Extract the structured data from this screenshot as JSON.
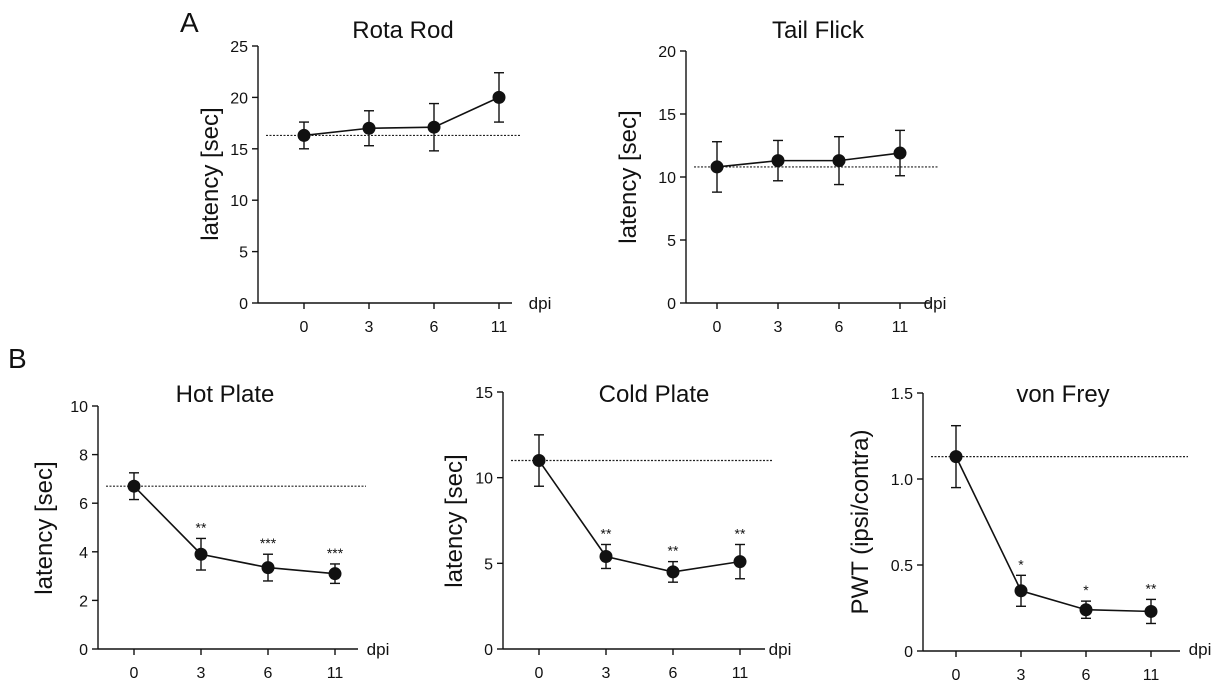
{
  "panel_labels": [
    "A",
    "B"
  ],
  "chart_data": [
    {
      "type": "line",
      "panel": "A",
      "title": "Rota Rod",
      "xlabel": "dpi",
      "ylabel": "latency [sec]",
      "categories": [
        "0",
        "3",
        "6",
        "11"
      ],
      "values": [
        16.3,
        17.0,
        17.1,
        20.0
      ],
      "errors": [
        1.3,
        1.7,
        2.3,
        2.4
      ],
      "significance": [
        "",
        "",
        "",
        ""
      ],
      "baseline": 16.3,
      "ylim": [
        0,
        25
      ],
      "yticks": [
        0,
        5,
        10,
        15,
        20,
        25
      ],
      "ytick_labels": [
        "0",
        "5",
        "10",
        "15",
        "20",
        "25"
      ]
    },
    {
      "type": "line",
      "panel": "A",
      "title": "Tail Flick",
      "xlabel": "dpi",
      "ylabel": "latency [sec]",
      "categories": [
        "0",
        "3",
        "6",
        "11"
      ],
      "values": [
        10.8,
        11.3,
        11.3,
        11.9
      ],
      "errors": [
        2.0,
        1.6,
        1.9,
        1.8
      ],
      "significance": [
        "",
        "",
        "",
        ""
      ],
      "baseline": 10.8,
      "ylim": [
        0,
        20
      ],
      "yticks": [
        0,
        5,
        10,
        15,
        20
      ],
      "ytick_labels": [
        "0",
        "5",
        "10",
        "15",
        "20"
      ]
    },
    {
      "type": "line",
      "panel": "B",
      "title": "Hot Plate",
      "xlabel": "dpi",
      "ylabel": "latency [sec]",
      "categories": [
        "0",
        "3",
        "6",
        "11"
      ],
      "values": [
        6.7,
        3.9,
        3.35,
        3.1
      ],
      "errors": [
        0.55,
        0.65,
        0.55,
        0.4
      ],
      "significance": [
        "",
        "**",
        "***",
        "***"
      ],
      "baseline": 6.7,
      "ylim": [
        0,
        10
      ],
      "yticks": [
        0,
        2,
        4,
        6,
        8,
        10
      ],
      "ytick_labels": [
        "0",
        "2",
        "4",
        "6",
        "8",
        "10"
      ]
    },
    {
      "type": "line",
      "panel": "B",
      "title": "Cold Plate",
      "xlabel": "dpi",
      "ylabel": "latency [sec]",
      "categories": [
        "0",
        "3",
        "6",
        "11"
      ],
      "values": [
        11.0,
        5.4,
        4.5,
        5.1
      ],
      "errors": [
        1.5,
        0.7,
        0.6,
        1.0
      ],
      "significance": [
        "",
        "**",
        "**",
        "**"
      ],
      "baseline": 11.0,
      "ylim": [
        0,
        15
      ],
      "yticks": [
        0,
        5,
        10,
        15
      ],
      "ytick_labels": [
        "0",
        "5",
        "10",
        "15"
      ]
    },
    {
      "type": "line",
      "panel": "B",
      "title": "von Frey",
      "xlabel": "dpi",
      "ylabel": "PWT (ipsi/contra)",
      "categories": [
        "0",
        "3",
        "6",
        "11"
      ],
      "values": [
        1.13,
        0.35,
        0.24,
        0.23
      ],
      "errors": [
        0.18,
        0.09,
        0.05,
        0.07
      ],
      "significance": [
        "",
        "*",
        "*",
        "**"
      ],
      "baseline": 1.13,
      "ylim": [
        0,
        1.5
      ],
      "yticks": [
        0,
        0.5,
        1.0,
        1.5
      ],
      "ytick_labels": [
        "0",
        "0.5",
        "1.0",
        "1.5"
      ]
    }
  ]
}
